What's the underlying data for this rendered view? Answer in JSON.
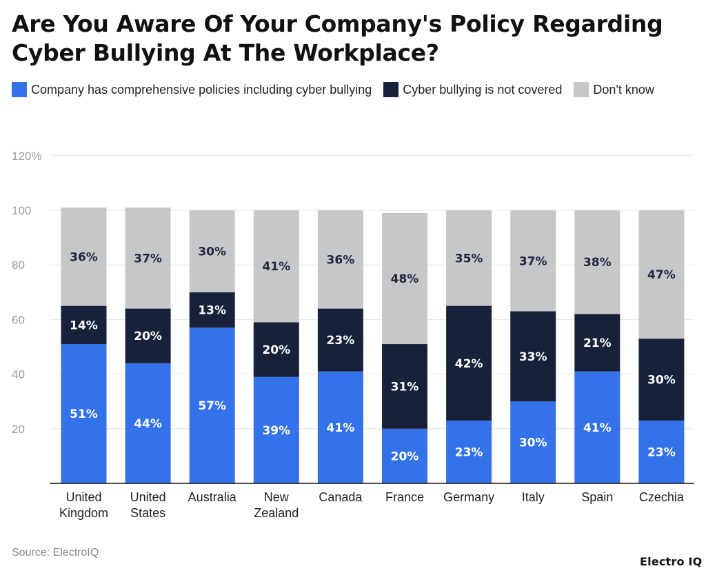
{
  "title": "Are You Aware Of Your Company's Policy Regarding Cyber Bullying At The Workplace?",
  "source": "Source: ElectroIQ",
  "brand": "Electro IQ",
  "colors": {
    "series_0": "#3372e8",
    "series_1": "#18213a",
    "series_2": "#c6c7c9",
    "grid": "#e6e6e6",
    "axis_text": "#9a9a9a"
  },
  "chart_data": {
    "type": "bar",
    "stacked": true,
    "title": "Are You Aware Of Your Company's Policy Regarding Cyber Bullying At The Workplace?",
    "categories": [
      [
        "United",
        "Kingdom"
      ],
      [
        "United",
        "States"
      ],
      [
        "Australia"
      ],
      [
        "New",
        "Zealand"
      ],
      [
        "Canada"
      ],
      [
        "France"
      ],
      [
        "Germany"
      ],
      [
        "Italy"
      ],
      [
        "Spain"
      ],
      [
        "Czechia"
      ]
    ],
    "series": [
      {
        "name": "Company has comprehensive policies including cyber bullying",
        "values": [
          51,
          44,
          57,
          39,
          41,
          20,
          23,
          30,
          41,
          23
        ],
        "labels": [
          "51%",
          "44%",
          "57%",
          "39%",
          "41%",
          "20%",
          "23%",
          "30%",
          "41%",
          "23%"
        ]
      },
      {
        "name": "Cyber bullying is not covered",
        "values": [
          14,
          20,
          13,
          20,
          23,
          31,
          42,
          33,
          21,
          30
        ],
        "labels": [
          "14%",
          "20%",
          "13%",
          "20%",
          "23%",
          "31%",
          "42%",
          "33%",
          "21%",
          "30%"
        ]
      },
      {
        "name": "Don't know",
        "values": [
          36,
          37,
          30,
          41,
          36,
          48,
          35,
          37,
          38,
          47
        ],
        "labels": [
          "36%",
          "37%",
          "30%",
          "41%",
          "36%",
          "48%",
          "35%",
          "37%",
          "38%",
          "47%"
        ]
      }
    ],
    "yticks": [
      20,
      40,
      60,
      80,
      100,
      120
    ],
    "ytick_labels": [
      "20",
      "40",
      "60",
      "80",
      "100",
      "120%"
    ],
    "ylim": [
      0,
      120
    ],
    "xlabel": "",
    "ylabel": "",
    "grid": true,
    "legend_position": "top-left"
  }
}
